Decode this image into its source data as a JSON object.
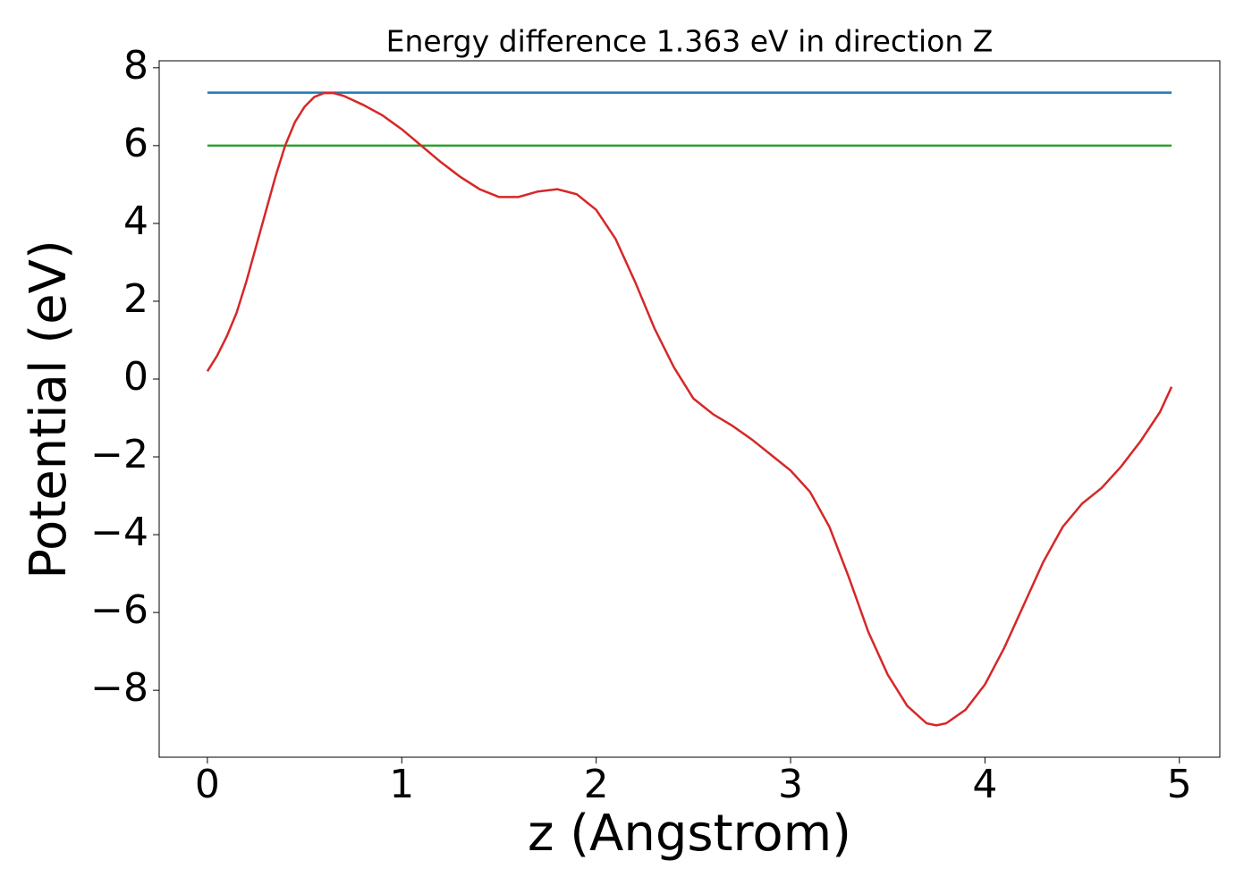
{
  "chart_data": {
    "type": "line",
    "title": "Energy difference 1.363 eV in direction Z",
    "xlabel": "z (Angstrom)",
    "ylabel": "Potential (eV)",
    "series": [
      {
        "color": "#1f77b4",
        "x": [
          0,
          4.96
        ],
        "values": [
          7.36,
          7.36
        ]
      },
      {
        "color": "#2ca02c",
        "x": [
          0,
          4.96
        ],
        "values": [
          6.0,
          6.0
        ]
      },
      {
        "color": "#d62728",
        "x": [
          0,
          0.05,
          0.1,
          0.15,
          0.2,
          0.25,
          0.3,
          0.35,
          0.4,
          0.45,
          0.5,
          0.55,
          0.6,
          0.65,
          0.7,
          0.8,
          0.9,
          1.0,
          1.1,
          1.2,
          1.3,
          1.4,
          1.5,
          1.6,
          1.7,
          1.8,
          1.9,
          2.0,
          2.1,
          2.2,
          2.3,
          2.4,
          2.5,
          2.6,
          2.7,
          2.8,
          2.9,
          3.0,
          3.1,
          3.2,
          3.3,
          3.4,
          3.5,
          3.6,
          3.7,
          3.75,
          3.8,
          3.9,
          4.0,
          4.1,
          4.2,
          4.3,
          4.4,
          4.5,
          4.6,
          4.7,
          4.8,
          4.9,
          4.96
        ],
        "values": [
          0.2,
          0.6,
          1.1,
          1.7,
          2.5,
          3.4,
          4.3,
          5.2,
          6.0,
          6.6,
          7.0,
          7.25,
          7.35,
          7.35,
          7.28,
          7.05,
          6.78,
          6.42,
          6.0,
          5.58,
          5.2,
          4.88,
          4.68,
          4.68,
          4.82,
          4.88,
          4.75,
          4.35,
          3.6,
          2.5,
          1.3,
          0.3,
          -0.5,
          -0.9,
          -1.2,
          -1.55,
          -1.95,
          -2.35,
          -2.9,
          -3.8,
          -5.1,
          -6.5,
          -7.6,
          -8.4,
          -8.85,
          -8.9,
          -8.85,
          -8.5,
          -7.85,
          -6.9,
          -5.8,
          -4.7,
          -3.8,
          -3.2,
          -2.8,
          -2.25,
          -1.6,
          -0.85,
          -0.2
        ]
      }
    ],
    "xlim": [
      -0.248,
      5.208
    ],
    "ylim": [
      -9.72,
      8.18
    ],
    "xticks": [
      0,
      1,
      2,
      3,
      4,
      5
    ],
    "yticks": [
      {
        "value": -8,
        "label": "−8"
      },
      {
        "value": -6,
        "label": "−6"
      },
      {
        "value": -4,
        "label": "−4"
      },
      {
        "value": -2,
        "label": "−2"
      },
      0,
      2,
      4,
      6,
      8
    ]
  }
}
